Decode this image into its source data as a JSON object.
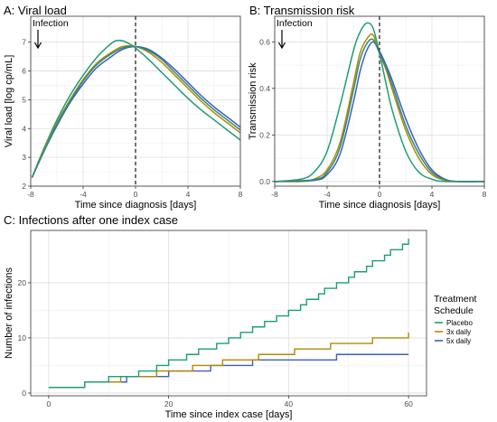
{
  "chart_data": [
    {
      "id": "A",
      "type": "line",
      "title": "A: Viral load",
      "xlabel": "Time since diagnosis [days]",
      "ylabel": "Viral load [log cp/mL]",
      "xlim": [
        -8,
        8
      ],
      "ylim": [
        2,
        7.9
      ],
      "xticks": [
        -8,
        -4,
        0,
        4,
        8
      ],
      "yticks": [
        2,
        3,
        4,
        5,
        6,
        7
      ],
      "annotation": "Infection",
      "vline_x": 0,
      "grid": true,
      "series": [
        {
          "color": "#1a9e77",
          "points": [
            [
              -7.9,
              2.3
            ],
            [
              -7,
              3.3
            ],
            [
              -6,
              4.3
            ],
            [
              -5,
              5.15
            ],
            [
              -4,
              5.85
            ],
            [
              -3,
              6.45
            ],
            [
              -2,
              6.9
            ],
            [
              -1.5,
              7.05
            ],
            [
              -1,
              7.05
            ],
            [
              -0.5,
              6.95
            ],
            [
              0,
              6.8
            ],
            [
              1,
              6.4
            ],
            [
              2,
              5.95
            ],
            [
              3,
              5.5
            ],
            [
              4,
              5.05
            ],
            [
              5,
              4.65
            ],
            [
              6,
              4.3
            ],
            [
              7,
              3.95
            ],
            [
              8,
              3.6
            ]
          ]
        },
        {
          "color": "#b58900",
          "points": [
            [
              -7.9,
              2.3
            ],
            [
              -7,
              3.25
            ],
            [
              -6,
              4.2
            ],
            [
              -5,
              5.0
            ],
            [
              -4,
              5.7
            ],
            [
              -3,
              6.25
            ],
            [
              -2,
              6.6
            ],
            [
              -1,
              6.85
            ],
            [
              0,
              6.85
            ],
            [
              1,
              6.65
            ],
            [
              2,
              6.3
            ],
            [
              3,
              5.85
            ],
            [
              4,
              5.4
            ],
            [
              5,
              4.95
            ],
            [
              6,
              4.55
            ],
            [
              7,
              4.2
            ],
            [
              8,
              3.85
            ]
          ]
        },
        {
          "color": "#3b5fc0",
          "points": [
            [
              -7.9,
              2.3
            ],
            [
              -7,
              3.2
            ],
            [
              -6,
              4.1
            ],
            [
              -5,
              4.9
            ],
            [
              -4,
              5.55
            ],
            [
              -3,
              6.1
            ],
            [
              -2,
              6.45
            ],
            [
              -1,
              6.75
            ],
            [
              0,
              6.85
            ],
            [
              1,
              6.75
            ],
            [
              2,
              6.45
            ],
            [
              3,
              6.05
            ],
            [
              4,
              5.6
            ],
            [
              5,
              5.15
            ],
            [
              6,
              4.75
            ],
            [
              7,
              4.4
            ],
            [
              8,
              4.05
            ]
          ]
        },
        {
          "color": "#2e8b7a",
          "points": [
            [
              -7.9,
              2.3
            ],
            [
              -7,
              3.2
            ],
            [
              -6,
              4.15
            ],
            [
              -5,
              4.95
            ],
            [
              -4,
              5.65
            ],
            [
              -3,
              6.2
            ],
            [
              -2,
              6.55
            ],
            [
              -1,
              6.8
            ],
            [
              0,
              6.85
            ],
            [
              1,
              6.7
            ],
            [
              2,
              6.4
            ],
            [
              3,
              5.95
            ],
            [
              4,
              5.5
            ],
            [
              5,
              5.05
            ],
            [
              6,
              4.65
            ],
            [
              7,
              4.3
            ],
            [
              8,
              3.95
            ]
          ]
        }
      ]
    },
    {
      "id": "B",
      "type": "line",
      "title": "B: Transmission risk",
      "xlabel": "Time since diagnosis [days]",
      "ylabel": "Transmission risk",
      "xlim": [
        -8,
        8
      ],
      "ylim": [
        -0.02,
        0.71
      ],
      "xticks": [
        -8,
        -4,
        0,
        4,
        8
      ],
      "yticks": [
        0.0,
        0.2,
        0.4,
        0.6
      ],
      "ytick_labels": [
        "0.0",
        "0.2",
        "0.4",
        "0.6"
      ],
      "annotation": "Infection",
      "vline_x": 0,
      "grid": true,
      "series": [
        {
          "color": "#1a9e77",
          "points": [
            [
              -8,
              0
            ],
            [
              -6,
              0.01
            ],
            [
              -5,
              0.04
            ],
            [
              -4,
              0.13
            ],
            [
              -3,
              0.33
            ],
            [
              -2,
              0.56
            ],
            [
              -1.5,
              0.64
            ],
            [
              -1,
              0.68
            ],
            [
              -0.5,
              0.66
            ],
            [
              0,
              0.55
            ],
            [
              0.5,
              0.42
            ],
            [
              1,
              0.3
            ],
            [
              2,
              0.13
            ],
            [
              3,
              0.04
            ],
            [
              4,
              0.01
            ],
            [
              5,
              0
            ],
            [
              8,
              0
            ]
          ]
        },
        {
          "color": "#b58900",
          "points": [
            [
              -8,
              0
            ],
            [
              -6,
              0.0
            ],
            [
              -5,
              0.01
            ],
            [
              -4,
              0.05
            ],
            [
              -3,
              0.17
            ],
            [
              -2,
              0.42
            ],
            [
              -1.5,
              0.55
            ],
            [
              -1,
              0.61
            ],
            [
              -0.5,
              0.63
            ],
            [
              0,
              0.55
            ],
            [
              0.5,
              0.48
            ],
            [
              1,
              0.39
            ],
            [
              2,
              0.22
            ],
            [
              3,
              0.1
            ],
            [
              4,
              0.03
            ],
            [
              5,
              0.005
            ],
            [
              6,
              0
            ],
            [
              8,
              0
            ]
          ]
        },
        {
          "color": "#3b5fc0",
          "points": [
            [
              -8,
              0
            ],
            [
              -5,
              0.005
            ],
            [
              -4,
              0.03
            ],
            [
              -3,
              0.12
            ],
            [
              -2,
              0.34
            ],
            [
              -1.5,
              0.47
            ],
            [
              -1,
              0.56
            ],
            [
              -0.5,
              0.6
            ],
            [
              0,
              0.56
            ],
            [
              0.5,
              0.5
            ],
            [
              1,
              0.43
            ],
            [
              2,
              0.27
            ],
            [
              3,
              0.14
            ],
            [
              4,
              0.05
            ],
            [
              5,
              0.01
            ],
            [
              6,
              0
            ],
            [
              8,
              0
            ]
          ]
        },
        {
          "color": "#2e8b7a",
          "points": [
            [
              -8,
              0
            ],
            [
              -5,
              0.008
            ],
            [
              -4,
              0.04
            ],
            [
              -3,
              0.15
            ],
            [
              -2,
              0.39
            ],
            [
              -1.5,
              0.52
            ],
            [
              -1,
              0.59
            ],
            [
              -0.5,
              0.61
            ],
            [
              0,
              0.55
            ],
            [
              0.5,
              0.49
            ],
            [
              1,
              0.41
            ],
            [
              2,
              0.24
            ],
            [
              3,
              0.12
            ],
            [
              4,
              0.04
            ],
            [
              5,
              0.008
            ],
            [
              6,
              0
            ],
            [
              8,
              0
            ]
          ]
        }
      ]
    },
    {
      "id": "C",
      "type": "line",
      "title": "C: Infections after one index case",
      "xlabel": "Time since index case [days]",
      "ylabel": "Number of infections",
      "xlim": [
        -3,
        63
      ],
      "ylim": [
        -0.5,
        29.5
      ],
      "xticks": [
        0,
        20,
        40,
        60
      ],
      "yticks": [
        0,
        10,
        20
      ],
      "grid": true,
      "legend": {
        "title_line1": "Treatment",
        "title_line2": "Schedule",
        "position": "right",
        "items": [
          {
            "label": "Placebo",
            "color": "#1a9e77"
          },
          {
            "label": "3x daily",
            "color": "#b58900"
          },
          {
            "label": "5x daily",
            "color": "#3b5fc0"
          }
        ]
      },
      "series": [
        {
          "name": "Placebo",
          "color": "#1a9e77",
          "steps": [
            [
              0,
              1
            ],
            [
              6,
              2
            ],
            [
              10,
              3
            ],
            [
              15,
              4
            ],
            [
              18,
              5
            ],
            [
              20,
              6
            ],
            [
              23,
              7
            ],
            [
              25,
              8
            ],
            [
              28,
              9
            ],
            [
              30,
              10
            ],
            [
              32,
              11
            ],
            [
              34,
              12
            ],
            [
              36,
              13
            ],
            [
              38,
              14
            ],
            [
              40,
              15
            ],
            [
              42,
              16
            ],
            [
              43,
              17
            ],
            [
              45,
              18
            ],
            [
              46,
              19
            ],
            [
              48,
              20
            ],
            [
              50,
              21
            ],
            [
              51,
              22
            ],
            [
              53,
              23
            ],
            [
              54,
              24
            ],
            [
              56,
              25
            ],
            [
              57,
              26
            ],
            [
              59,
              27
            ],
            [
              60,
              28
            ]
          ],
          "x_end": 60
        },
        {
          "name": "3x daily",
          "color": "#b58900",
          "steps": [
            [
              0,
              1
            ],
            [
              6,
              2
            ],
            [
              12,
              3
            ],
            [
              18,
              4
            ],
            [
              24,
              5
            ],
            [
              29,
              6
            ],
            [
              35,
              7
            ],
            [
              41,
              8
            ],
            [
              47,
              9
            ],
            [
              54,
              10
            ],
            [
              60,
              11
            ]
          ],
          "x_end": 60
        },
        {
          "name": "5x daily",
          "color": "#3b5fc0",
          "steps": [
            [
              0,
              1
            ],
            [
              6,
              2
            ],
            [
              13,
              3
            ],
            [
              20,
              4
            ],
            [
              27,
              5
            ],
            [
              34,
              6
            ],
            [
              48,
              7
            ]
          ],
          "x_end": 60
        }
      ]
    }
  ]
}
